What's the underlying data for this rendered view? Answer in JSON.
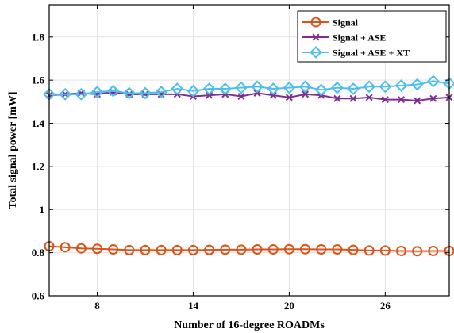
{
  "chart_data": {
    "type": "line",
    "xlabel": "Number of 16-degree ROADMs",
    "ylabel": "Total signal power [mW]",
    "xlim": [
      5,
      30
    ],
    "ylim": [
      0.6,
      1.95
    ],
    "xticks": [
      8,
      14,
      20,
      26
    ],
    "yticks": [
      0.6,
      0.8,
      1,
      1.2,
      1.4,
      1.6,
      1.8
    ],
    "ytick_labels": [
      "0.6",
      "0.8",
      "1",
      "1.2",
      "1.4",
      "1.6",
      "1.8"
    ],
    "xtick_labels": [
      "8",
      "14",
      "20",
      "26"
    ],
    "grid": true,
    "legend_position": "top-right",
    "x": [
      5,
      6,
      7,
      8,
      9,
      10,
      11,
      12,
      13,
      14,
      15,
      16,
      17,
      18,
      19,
      20,
      21,
      22,
      23,
      24,
      25,
      26,
      27,
      28,
      29,
      30
    ],
    "series": [
      {
        "name": "Signal",
        "color": "#D95319",
        "marker": "circle",
        "values": [
          0.83,
          0.825,
          0.82,
          0.818,
          0.815,
          0.812,
          0.812,
          0.812,
          0.812,
          0.812,
          0.813,
          0.814,
          0.814,
          0.815,
          0.815,
          0.816,
          0.816,
          0.815,
          0.815,
          0.813,
          0.81,
          0.81,
          0.808,
          0.807,
          0.808,
          0.808
        ]
      },
      {
        "name": "Signal + ASE",
        "color": "#7E2F8E",
        "marker": "x",
        "values": [
          1.53,
          1.535,
          1.54,
          1.535,
          1.545,
          1.535,
          1.535,
          1.535,
          1.535,
          1.525,
          1.53,
          1.535,
          1.525,
          1.54,
          1.53,
          1.52,
          1.535,
          1.53,
          1.515,
          1.515,
          1.52,
          1.51,
          1.51,
          1.505,
          1.515,
          1.52
        ]
      },
      {
        "name": "Signal + ASE + XT",
        "color": "#4DBEEE",
        "marker": "diamond",
        "values": [
          1.535,
          1.535,
          1.535,
          1.545,
          1.55,
          1.54,
          1.54,
          1.545,
          1.56,
          1.55,
          1.56,
          1.56,
          1.565,
          1.57,
          1.56,
          1.565,
          1.57,
          1.555,
          1.565,
          1.56,
          1.57,
          1.57,
          1.575,
          1.58,
          1.595,
          1.585
        ]
      }
    ]
  }
}
